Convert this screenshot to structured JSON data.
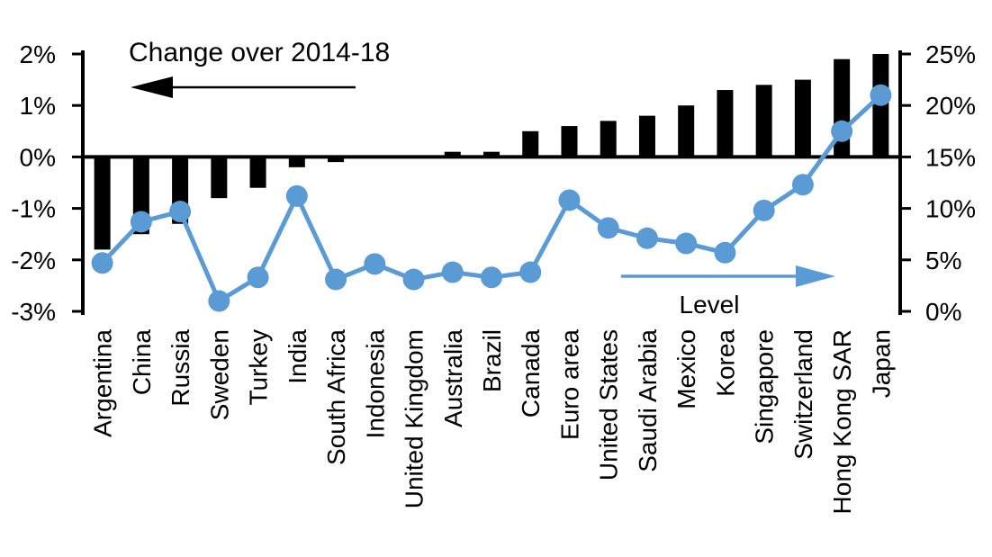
{
  "chart_data": {
    "type": "combo-bar-line",
    "annotations": {
      "bar_series_label": "Change over 2014-18",
      "line_series_label": "Level"
    },
    "categories": [
      "Argentina",
      "China",
      "Russia",
      "Sweden",
      "Turkey",
      "India",
      "South Africa",
      "Indonesia",
      "United Kingdom",
      "Australia",
      "Brazil",
      "Canada",
      "Euro area",
      "United States",
      "Saudi Arabia",
      "Mexico",
      "Korea",
      "Singapore",
      "Switzerland",
      "Hong Kong SAR",
      "Japan"
    ],
    "series": [
      {
        "name": "Change over 2014-18",
        "type": "bar",
        "axis": "left",
        "color": "#000000",
        "unit": "%",
        "values": [
          -1.8,
          -1.5,
          -1.3,
          -0.8,
          -0.6,
          -0.2,
          -0.1,
          0,
          0,
          0.1,
          0.1,
          0.5,
          0.6,
          0.7,
          0.8,
          1.0,
          1.3,
          1.4,
          1.5,
          1.9,
          2.0
        ]
      },
      {
        "name": "Level",
        "type": "line",
        "axis": "right",
        "color": "#5B9BD5",
        "unit": "%",
        "values": [
          4.7,
          8.7,
          9.7,
          1.0,
          3.3,
          11.2,
          3.1,
          4.6,
          3.1,
          3.8,
          3.3,
          3.8,
          10.8,
          8.1,
          7.1,
          6.6,
          5.7,
          9.8,
          12.3,
          17.5,
          21.0
        ]
      }
    ],
    "left_axis": {
      "min": -3,
      "max": 2,
      "tick_values": [
        2,
        1,
        0,
        -1,
        -2,
        -3
      ],
      "tick_labels": [
        "2%",
        "1%",
        "0%",
        "-1%",
        "-2%",
        "-3%"
      ]
    },
    "right_axis": {
      "min": 0,
      "max": 25,
      "tick_values": [
        25,
        20,
        15,
        10,
        5,
        0
      ],
      "tick_labels": [
        "25%",
        "20%",
        "15%",
        "10%",
        "5%",
        "0%"
      ]
    },
    "layout_hints": {
      "grid": "off",
      "zero_line": "on",
      "x_labels_rotated_90": true
    },
    "colors": {
      "bar": "#000000",
      "line": "#5B9BD5",
      "text": "#000000",
      "background": "#FFFFFF"
    }
  }
}
